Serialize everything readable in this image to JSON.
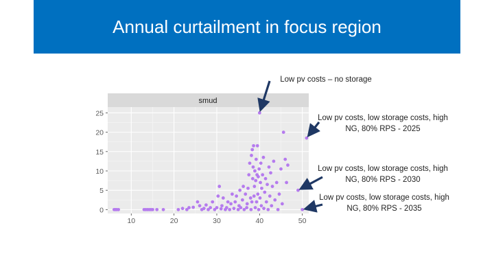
{
  "slide": {
    "title": "Annual curtailment in focus region",
    "title_bg_color": "#0070c0"
  },
  "annotations": [
    {
      "text": "Low pv costs – no storage",
      "target": [
        40,
        25
      ]
    },
    {
      "text": "Low pv costs, low storage costs, high NG, 80% RPS - 2025",
      "target": [
        51,
        18.5
      ]
    },
    {
      "text": "Low pv costs, low storage costs, high NG, 80% RPS - 2030",
      "target": [
        49,
        5
      ]
    },
    {
      "text": "Low pv costs, low storage costs, high NG, 80% RPS - 2035",
      "target": [
        50,
        0
      ]
    }
  ],
  "chart_data": {
    "type": "scatter",
    "facet_label": "smud",
    "xlim": [
      4.5,
      51.5
    ],
    "ylim": [
      -1,
      26.5
    ],
    "x_ticks": [
      10,
      20,
      30,
      40,
      50
    ],
    "y_ticks": [
      0,
      5,
      10,
      15,
      20,
      25
    ],
    "grid": true,
    "point_color": "#b57bee",
    "panel_color": "#ebebeb",
    "strip_color": "#d9d9d9",
    "arrow_color": "#1f3864",
    "series": [
      {
        "points": [
          [
            6,
            0
          ],
          [
            6.3,
            0
          ],
          [
            6.6,
            0
          ],
          [
            7,
            0
          ],
          [
            13,
            0
          ],
          [
            13.4,
            0
          ],
          [
            13.8,
            0
          ],
          [
            14.2,
            0
          ],
          [
            14.6,
            0
          ],
          [
            15,
            0
          ],
          [
            16,
            0
          ],
          [
            17.5,
            0
          ],
          [
            21,
            0
          ],
          [
            22,
            0.3
          ],
          [
            23,
            0
          ],
          [
            23.5,
            0.5
          ],
          [
            24.5,
            0.6
          ],
          [
            25.5,
            2
          ],
          [
            26,
            1
          ],
          [
            26.5,
            0
          ],
          [
            27,
            0.3
          ],
          [
            27.5,
            1.2
          ],
          [
            28,
            0
          ],
          [
            28.5,
            0.5
          ],
          [
            29,
            2
          ],
          [
            29.5,
            0
          ],
          [
            30,
            0.5
          ],
          [
            30.3,
            3.5
          ],
          [
            30.6,
            6
          ],
          [
            31,
            0.2
          ],
          [
            31.2,
            1
          ],
          [
            31.5,
            3
          ],
          [
            32,
            0
          ],
          [
            32.3,
            0.5
          ],
          [
            32.6,
            2
          ],
          [
            33,
            0
          ],
          [
            33.3,
            1.5
          ],
          [
            33.6,
            4
          ],
          [
            34,
            0.3
          ],
          [
            34.3,
            2
          ],
          [
            34.6,
            3.5
          ],
          [
            35,
            0
          ],
          [
            35.2,
            1
          ],
          [
            35.4,
            5
          ],
          [
            35.6,
            0.5
          ],
          [
            36,
            2.5
          ],
          [
            36.2,
            6
          ],
          [
            36.4,
            0
          ],
          [
            36.7,
            4
          ],
          [
            37,
            0.5
          ],
          [
            37.1,
            1.5
          ],
          [
            37.3,
            5.5
          ],
          [
            37.5,
            9
          ],
          [
            37.7,
            12
          ],
          [
            37.9,
            3
          ],
          [
            38,
            0
          ],
          [
            38.1,
            14
          ],
          [
            38.2,
            2
          ],
          [
            38.3,
            15.5
          ],
          [
            38.4,
            8
          ],
          [
            38.5,
            11
          ],
          [
            38.6,
            16.5
          ],
          [
            38.7,
            3.5
          ],
          [
            38.8,
            6
          ],
          [
            38.9,
            10
          ],
          [
            39,
            0.5
          ],
          [
            39.1,
            7.5
          ],
          [
            39.2,
            13
          ],
          [
            39.3,
            2
          ],
          [
            39.4,
            9
          ],
          [
            39.5,
            16.5
          ],
          [
            39.6,
            4
          ],
          [
            39.7,
            8.5
          ],
          [
            39.8,
            0
          ],
          [
            39.9,
            10.5
          ],
          [
            40,
            25
          ],
          [
            40.1,
            3
          ],
          [
            40.2,
            7
          ],
          [
            40.3,
            12
          ],
          [
            40.4,
            1
          ],
          [
            40.5,
            5.5
          ],
          [
            40.7,
            9
          ],
          [
            40.9,
            13.5
          ],
          [
            41,
            0.3
          ],
          [
            41.2,
            4.5
          ],
          [
            41.4,
            8
          ],
          [
            41.6,
            2
          ],
          [
            41.8,
            6.5
          ],
          [
            42,
            0
          ],
          [
            42.2,
            11
          ],
          [
            42.4,
            3.5
          ],
          [
            42.6,
            9.5
          ],
          [
            42.8,
            1
          ],
          [
            43,
            6
          ],
          [
            43.3,
            12.5
          ],
          [
            43.6,
            2.5
          ],
          [
            44,
            7
          ],
          [
            44.3,
            0
          ],
          [
            44.6,
            4
          ],
          [
            45,
            10.5
          ],
          [
            45.3,
            1.5
          ],
          [
            45.6,
            20
          ],
          [
            46,
            13
          ],
          [
            46.3,
            7
          ],
          [
            46.6,
            11.5
          ],
          [
            49,
            5
          ],
          [
            50,
            0
          ],
          [
            51,
            18.5
          ]
        ]
      }
    ]
  }
}
